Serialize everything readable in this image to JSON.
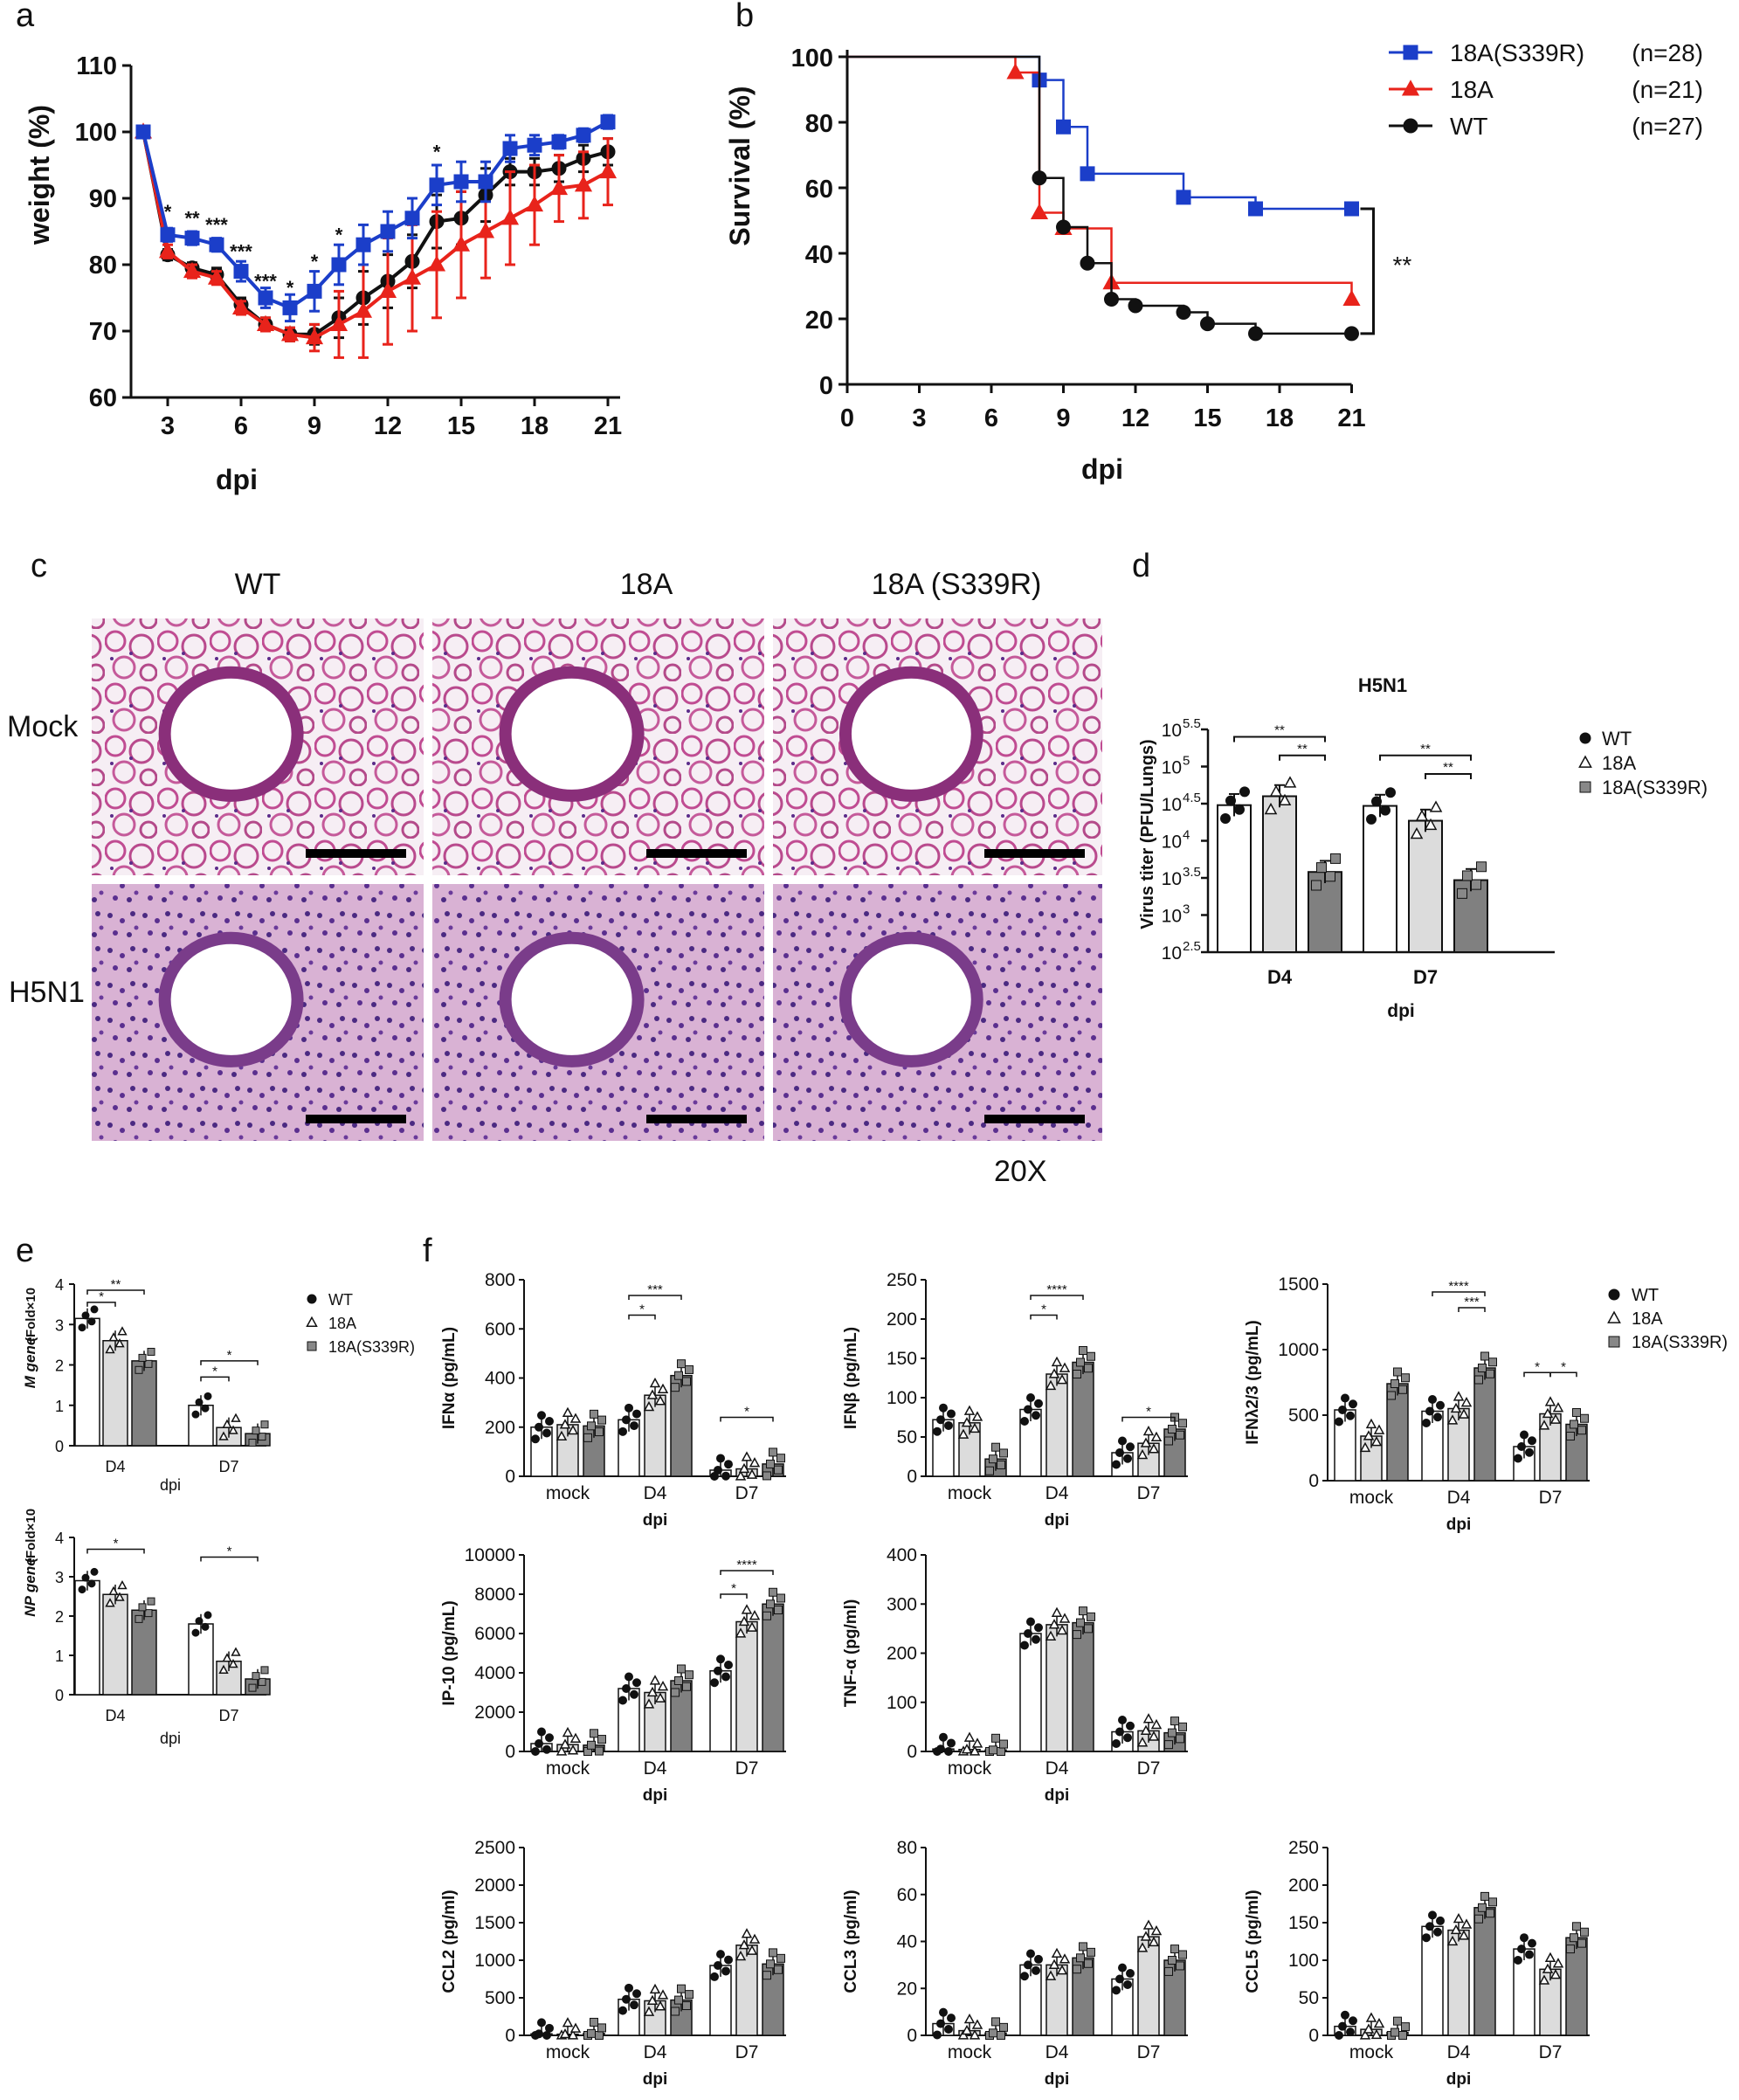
{
  "panel_letters": [
    "a",
    "b",
    "c",
    "d",
    "e",
    "f"
  ],
  "colors": {
    "WT": "#111111",
    "18A": "#e8231b",
    "18A(S339R)": "#1b3ec9"
  },
  "chart_data": [
    {
      "id": "a",
      "type": "line",
      "xlabel": "dpi",
      "ylabel": "weight (%)",
      "xlim": [
        1.5,
        21.5
      ],
      "ylim": [
        60,
        110
      ],
      "xticks": [
        3,
        6,
        9,
        12,
        15,
        18,
        21
      ],
      "yticks": [
        60,
        70,
        80,
        90,
        100,
        110
      ],
      "x": [
        2,
        3,
        4,
        5,
        6,
        7,
        8,
        9,
        10,
        11,
        12,
        13,
        14,
        15,
        16,
        17,
        18,
        19,
        20,
        21
      ],
      "series": [
        {
          "name": "WT",
          "color": "#111111",
          "marker": "circle",
          "values": [
            100,
            81.5,
            79.5,
            78.5,
            74,
            71,
            69.5,
            69.5,
            72,
            75,
            77.5,
            80.5,
            86.5,
            87,
            90.5,
            94,
            94,
            94.5,
            96,
            97
          ],
          "error": [
            0,
            0.8,
            0.8,
            1,
            1,
            1,
            1,
            1.5,
            3,
            4,
            4,
            4,
            4,
            4,
            4,
            2,
            2,
            2,
            2,
            2
          ]
        },
        {
          "name": "18A",
          "color": "#e8231b",
          "marker": "triangle",
          "values": [
            100,
            82,
            79,
            78,
            73.5,
            71,
            69.5,
            69,
            71,
            73,
            76,
            78,
            80,
            83,
            85,
            87,
            89,
            91.5,
            92,
            94
          ],
          "error": [
            0,
            1,
            1,
            1,
            1,
            1,
            1,
            2,
            5,
            7,
            8,
            8,
            8,
            8,
            7,
            7,
            6,
            5,
            5,
            5
          ]
        },
        {
          "name": "18A(S339R)",
          "color": "#1b3ec9",
          "marker": "square",
          "values": [
            100,
            84.5,
            84,
            83,
            79,
            75,
            73.5,
            76,
            80,
            83,
            85,
            87,
            92,
            92.5,
            92.5,
            97.5,
            98,
            98.5,
            99.5,
            101.5
          ],
          "error": [
            0,
            1,
            1,
            1,
            1.5,
            1.5,
            2,
            3,
            3,
            3,
            3,
            3,
            3,
            3,
            3,
            2,
            1.5,
            1,
            1,
            1
          ]
        }
      ],
      "annotations": [
        {
          "x": 3,
          "y": 87,
          "text": "*"
        },
        {
          "x": 4,
          "y": 86,
          "text": "**"
        },
        {
          "x": 5,
          "y": 85,
          "text": "***"
        },
        {
          "x": 6,
          "y": 81,
          "text": "***"
        },
        {
          "x": 7,
          "y": 76.5,
          "text": "***"
        },
        {
          "x": 8,
          "y": 75.5,
          "text": "*"
        },
        {
          "x": 9,
          "y": 79.5,
          "text": "*"
        },
        {
          "x": 10,
          "y": 83.5,
          "text": "*"
        },
        {
          "x": 14,
          "y": 96,
          "text": "*"
        }
      ]
    },
    {
      "id": "b",
      "type": "line",
      "xlabel": "dpi",
      "ylabel": "Survival (%)",
      "xlim": [
        0,
        22
      ],
      "ylim": [
        0,
        100
      ],
      "xticks": [
        0,
        3,
        6,
        9,
        12,
        15,
        18,
        21
      ],
      "yticks": [
        0,
        20,
        40,
        60,
        80,
        100
      ],
      "step": true,
      "series": [
        {
          "name": "18A(S339R)",
          "n_label": "(n=28)",
          "color": "#1b3ec9",
          "marker": "square",
          "x": [
            0,
            8,
            9,
            10,
            14,
            17,
            21
          ],
          "values": [
            100,
            92.9,
            78.6,
            64.3,
            57.1,
            53.6,
            53.6
          ]
        },
        {
          "name": "18A",
          "n_label": "(n=21)",
          "color": "#e8231b",
          "marker": "triangle",
          "x": [
            0,
            7,
            8,
            9,
            11,
            21
          ],
          "values": [
            100,
            95.2,
            52.4,
            47.6,
            31,
            26
          ]
        },
        {
          "name": "WT",
          "n_label": "(n=27)",
          "color": "#111111",
          "marker": "circle",
          "x": [
            0,
            8,
            9,
            10,
            11,
            12,
            14,
            15,
            17,
            21
          ],
          "values": [
            100,
            63,
            48,
            37,
            26,
            24,
            22,
            18.5,
            15.5,
            15.5
          ]
        }
      ],
      "significance": "**"
    },
    {
      "id": "d",
      "type": "bar",
      "title": "H5N1",
      "xlabel": "dpi",
      "ylabel": "Virus titer (PFU/Lungs)",
      "yscale": "log10",
      "ylim": [
        2.5,
        5.5
      ],
      "ytick_bases": [
        "10",
        "10",
        "10",
        "10",
        "10",
        "10",
        "10"
      ],
      "ytick_exps": [
        "2.5",
        "3",
        "3.5",
        "4",
        "4.5",
        "5",
        "5.5"
      ],
      "categories": [
        "D4",
        "D7"
      ],
      "series": [
        {
          "name": "WT",
          "fill": "#ffffff",
          "values": [
            4.48,
            4.47
          ]
        },
        {
          "name": "18A",
          "fill": "#dcdcdc",
          "values": [
            4.6,
            4.27
          ]
        },
        {
          "name": "18A(S339R)",
          "fill": "#808080",
          "values": [
            3.58,
            3.47
          ]
        }
      ],
      "significance": [
        "**",
        "**",
        "**",
        "**"
      ]
    },
    {
      "id": "e1",
      "type": "bar",
      "xlabel": "dpi",
      "ylabel_gene": "M gene",
      "ylabel_unit": "(Fold×10",
      "ylim": [
        0,
        4
      ],
      "yticks": [
        0,
        1,
        2,
        3,
        4
      ],
      "categories": [
        "D4",
        "D7"
      ],
      "series": [
        {
          "name": "WT",
          "fill": "#ffffff",
          "values": [
            3.15,
            1.0
          ]
        },
        {
          "name": "18A",
          "fill": "#dcdcdc",
          "values": [
            2.6,
            0.45
          ]
        },
        {
          "name": "18A(S339R)",
          "fill": "#808080",
          "values": [
            2.1,
            0.3
          ]
        }
      ],
      "significance": [
        "*",
        "**",
        "*",
        "*"
      ]
    },
    {
      "id": "e2",
      "type": "bar",
      "xlabel": "dpi",
      "ylabel_gene": "NP gene",
      "ylabel_unit": "(Fold×10",
      "ylim": [
        0,
        4
      ],
      "yticks": [
        0,
        1,
        2,
        3,
        4
      ],
      "categories": [
        "D4",
        "D7"
      ],
      "series": [
        {
          "name": "WT",
          "fill": "#ffffff",
          "values": [
            2.9,
            1.8
          ]
        },
        {
          "name": "18A",
          "fill": "#dcdcdc",
          "values": [
            2.55,
            0.85
          ]
        },
        {
          "name": "18A(S339R)",
          "fill": "#808080",
          "values": [
            2.15,
            0.4
          ]
        }
      ],
      "significance": [
        "*",
        "*"
      ]
    },
    {
      "id": "f_ifna",
      "type": "bar",
      "ylabel": "IFNα (pg/mL)",
      "xlabel": "dpi",
      "ylim": [
        0,
        800
      ],
      "yticks": [
        0,
        200,
        400,
        600,
        800
      ],
      "categories": [
        "mock",
        "D4",
        "D7"
      ],
      "series": [
        {
          "name": "WT",
          "values": [
            200,
            230,
            25
          ]
        },
        {
          "name": "18A",
          "values": [
            210,
            330,
            30
          ]
        },
        {
          "name": "18A(S339R)",
          "values": [
            205,
            410,
            50
          ]
        }
      ],
      "significance": [
        "*",
        "***",
        "*"
      ]
    },
    {
      "id": "f_ifnb",
      "type": "bar",
      "ylabel": "IFNβ (pg/mL)",
      "xlabel": "dpi",
      "ylim": [
        0,
        250
      ],
      "yticks": [
        0,
        50,
        100,
        150,
        200,
        250
      ],
      "categories": [
        "mock",
        "D4",
        "D7"
      ],
      "series": [
        {
          "name": "WT",
          "values": [
            72,
            85,
            30
          ]
        },
        {
          "name": "18A",
          "values": [
            68,
            130,
            42
          ]
        },
        {
          "name": "18A(S339R)",
          "values": [
            22,
            145,
            60
          ]
        }
      ],
      "significance": [
        "*",
        "****",
        "*"
      ]
    },
    {
      "id": "f_ifnl",
      "type": "bar",
      "ylabel": "IFNλ2/3 (pg/mL)",
      "xlabel": "dpi",
      "ylim": [
        0,
        1500
      ],
      "yticks": [
        0,
        500,
        1000,
        1500
      ],
      "categories": [
        "mock",
        "D4",
        "D7"
      ],
      "series": [
        {
          "name": "WT",
          "values": [
            540,
            530,
            260
          ]
        },
        {
          "name": "18A",
          "values": [
            340,
            550,
            510
          ]
        },
        {
          "name": "18A(S339R)",
          "values": [
            740,
            860,
            430
          ]
        }
      ],
      "significance": [
        "***",
        "****",
        "*",
        "*"
      ]
    },
    {
      "id": "f_ip10",
      "type": "bar",
      "ylabel": "IP-10 (pg/mL)",
      "xlabel": "dpi",
      "ylim": [
        0,
        10000
      ],
      "yticks": [
        0,
        2000,
        4000,
        6000,
        8000,
        10000
      ],
      "categories": [
        "mock",
        "D4",
        "D7"
      ],
      "series": [
        {
          "name": "WT",
          "values": [
            400,
            3200,
            4100
          ]
        },
        {
          "name": "18A",
          "values": [
            350,
            3000,
            6600
          ]
        },
        {
          "name": "18A(S339R)",
          "values": [
            320,
            3600,
            7500
          ]
        }
      ],
      "significance": [
        "*",
        "****"
      ]
    },
    {
      "id": "f_tnfa",
      "type": "bar",
      "ylabel": "TNF-α (pg/ml)",
      "xlabel": "dpi",
      "ylim": [
        0,
        400
      ],
      "yticks": [
        0,
        100,
        200,
        300,
        400
      ],
      "categories": [
        "mock",
        "D4",
        "D7"
      ],
      "series": [
        {
          "name": "WT",
          "values": [
            5,
            240,
            40
          ]
        },
        {
          "name": "18A",
          "values": [
            4,
            258,
            42
          ]
        },
        {
          "name": "18A(S339R)",
          "values": [
            3,
            262,
            38
          ]
        }
      ],
      "significance": []
    },
    {
      "id": "f_ccl2",
      "type": "bar",
      "ylabel": "CCL2 (pg/ml)",
      "xlabel": "dpi",
      "ylim": [
        0,
        2500
      ],
      "yticks": [
        0,
        500,
        1000,
        1500,
        2000,
        2500
      ],
      "categories": [
        "mock",
        "D4",
        "D7"
      ],
      "series": [
        {
          "name": "WT",
          "values": [
            20,
            480,
            930
          ]
        },
        {
          "name": "18A",
          "values": [
            15,
            460,
            1200
          ]
        },
        {
          "name": "18A(S339R)",
          "values": [
            25,
            470,
            950
          ]
        }
      ],
      "significance": []
    },
    {
      "id": "f_ccl3",
      "type": "bar",
      "ylabel": "CCL3 (pg/ml)",
      "xlabel": "dpi",
      "ylim": [
        0,
        80
      ],
      "yticks": [
        0,
        20,
        40,
        60,
        80
      ],
      "categories": [
        "mock",
        "D4",
        "D7"
      ],
      "series": [
        {
          "name": "WT",
          "values": [
            5,
            30,
            24
          ]
        },
        {
          "name": "18A",
          "values": [
            2,
            30,
            42
          ]
        },
        {
          "name": "18A(S339R)",
          "values": [
            1,
            33,
            32
          ]
        }
      ],
      "significance": []
    },
    {
      "id": "f_ccl5",
      "type": "bar",
      "ylabel": "CCL5 (pg/ml)",
      "xlabel": "dpi",
      "ylim": [
        0,
        250
      ],
      "yticks": [
        0,
        50,
        100,
        150,
        200,
        250
      ],
      "categories": [
        "mock",
        "D4",
        "D7"
      ],
      "series": [
        {
          "name": "WT",
          "values": [
            12,
            145,
            115
          ]
        },
        {
          "name": "18A",
          "values": [
            8,
            140,
            88
          ]
        },
        {
          "name": "18A(S339R)",
          "values": [
            4,
            170,
            130
          ]
        }
      ],
      "significance": []
    }
  ],
  "histology": {
    "columns": [
      "WT",
      "18A",
      "18A (S339R)"
    ],
    "rows": [
      "Mock",
      "H5N1"
    ],
    "magnification": "20X"
  },
  "legend_dots": {
    "labels": [
      "WT",
      "18A",
      "18A(S339R)"
    ]
  }
}
